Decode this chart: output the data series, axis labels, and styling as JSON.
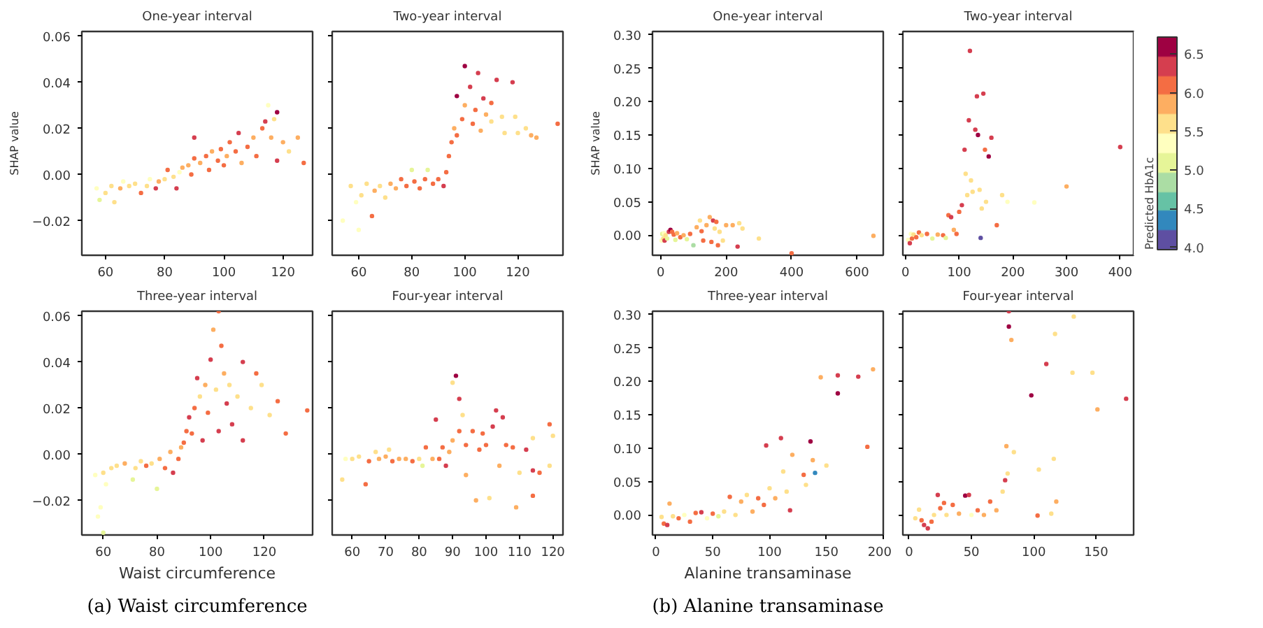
{
  "chart_data": [
    {
      "type": "scatter",
      "title": "One-year interval",
      "ylabel": "SHAP value",
      "marker": "circle",
      "xlim": [
        52,
        130
      ],
      "xticks": [
        60,
        80,
        100,
        120
      ],
      "ylim": [
        -0.035,
        0.062
      ],
      "yticks": [
        {
          "value": -0.02,
          "label": "−0.02"
        },
        {
          "value": 0,
          "label": "0.00"
        },
        {
          "value": 0.02,
          "label": "0.02"
        },
        {
          "value": 0.04,
          "label": "0.04"
        },
        {
          "value": 0.06,
          "label": "0.06"
        }
      ],
      "x": [
        57,
        58,
        60,
        62,
        63,
        65,
        66,
        68,
        70,
        72,
        74,
        75,
        77,
        78,
        80,
        81,
        83,
        84,
        85,
        86,
        88,
        89,
        90,
        90,
        92,
        94,
        95,
        96,
        98,
        99,
        100,
        101,
        102,
        104,
        105,
        106,
        108,
        110,
        111,
        113,
        114,
        115,
        116,
        117,
        118,
        118,
        120,
        122,
        125,
        127
      ],
      "values": [
        -0.006,
        -0.011,
        -0.008,
        -0.005,
        -0.012,
        -0.006,
        -0.003,
        -0.005,
        -0.004,
        -0.008,
        -0.005,
        -0.002,
        -0.006,
        -0.003,
        -0.002,
        0.002,
        -0.001,
        -0.006,
        0.001,
        0.003,
        0.004,
        0.0,
        0.007,
        0.016,
        0.005,
        0.008,
        0.002,
        0.01,
        0.006,
        0.011,
        0.004,
        0.008,
        0.014,
        0.01,
        0.018,
        0.005,
        0.012,
        0.016,
        0.008,
        0.02,
        0.023,
        0.03,
        0.016,
        0.024,
        0.027,
        0.006,
        0.014,
        0.01,
        0.016,
        0.005
      ],
      "colors": [
        "#ffffbf",
        "#e6f598",
        "#fee08b",
        "#fee08b",
        "#fee08b",
        "#fdae61",
        "#ffffbf",
        "#fee08b",
        "#fee08b",
        "#f46d43",
        "#fee08b",
        "#ffffbf",
        "#d53e4f",
        "#fdae61",
        "#fee08b",
        "#f46d43",
        "#fee08b",
        "#d53e4f",
        "#ffffbf",
        "#fdae61",
        "#fdae61",
        "#f46d43",
        "#f46d43",
        "#d53e4f",
        "#fdae61",
        "#f46d43",
        "#f46d43",
        "#fdae61",
        "#f46d43",
        "#f46d43",
        "#f46d43",
        "#fdae61",
        "#f46d43",
        "#f46d43",
        "#d53e4f",
        "#fdae61",
        "#f46d43",
        "#fdae61",
        "#f46d43",
        "#f46d43",
        "#d53e4f",
        "#ffffbf",
        "#fdae61",
        "#fee08b",
        "#9e0142",
        "#d53e4f",
        "#fdae61",
        "#fee08b",
        "#fdae61",
        "#f46d43"
      ]
    },
    {
      "type": "scatter",
      "title": "Two-year interval",
      "marker": "circle",
      "tick_labels": "x",
      "xlim": [
        50,
        137
      ],
      "xticks": [
        60,
        80,
        100,
        120
      ],
      "ylim": [
        -0.035,
        0.062
      ],
      "yticks": [
        -0.02,
        0,
        0.02,
        0.04,
        0.06
      ],
      "x": [
        54,
        57,
        59,
        60,
        61,
        63,
        65,
        66,
        68,
        70,
        72,
        74,
        76,
        78,
        80,
        81,
        83,
        85,
        86,
        88,
        90,
        92,
        93,
        94,
        95,
        96,
        97,
        97,
        99,
        100,
        100,
        102,
        103,
        104,
        105,
        106,
        107,
        108,
        110,
        110,
        112,
        114,
        115,
        118,
        119,
        120,
        123,
        125,
        127,
        135
      ],
      "values": [
        -0.02,
        -0.005,
        -0.012,
        -0.024,
        -0.009,
        -0.004,
        -0.018,
        -0.007,
        -0.005,
        -0.01,
        -0.004,
        -0.006,
        -0.002,
        -0.005,
        0.002,
        -0.003,
        -0.006,
        -0.002,
        0.002,
        -0.004,
        -0.002,
        -0.005,
        0.001,
        0.008,
        0.014,
        0.02,
        0.017,
        0.034,
        0.024,
        0.03,
        0.047,
        0.038,
        0.022,
        0.028,
        0.044,
        0.019,
        0.033,
        0.026,
        0.023,
        0.031,
        0.041,
        0.025,
        0.018,
        0.04,
        0.025,
        0.018,
        0.02,
        0.017,
        0.016,
        0.022
      ],
      "colors": [
        "#ffffbf",
        "#fee08b",
        "#ffffbf",
        "#ffffbf",
        "#fee08b",
        "#fee08b",
        "#f46d43",
        "#fdae61",
        "#fee08b",
        "#fee08b",
        "#fdae61",
        "#fdae61",
        "#f46d43",
        "#f46d43",
        "#e6f598",
        "#f46d43",
        "#f46d43",
        "#f46d43",
        "#e6f598",
        "#f46d43",
        "#f46d43",
        "#d53e4f",
        "#f46d43",
        "#f46d43",
        "#f46d43",
        "#fdae61",
        "#f46d43",
        "#9e0142",
        "#f46d43",
        "#fdae61",
        "#9e0142",
        "#d53e4f",
        "#f46d43",
        "#f46d43",
        "#d53e4f",
        "#fdae61",
        "#d53e4f",
        "#fdae61",
        "#fee08b",
        "#f46d43",
        "#d53e4f",
        "#fee08b",
        "#fee08b",
        "#d53e4f",
        "#fee08b",
        "#fee08b",
        "#fee08b",
        "#fdae61",
        "#fdae61",
        "#f46d43"
      ]
    },
    {
      "type": "scatter",
      "title": "Three-year interval",
      "xlabel": "Waist circumference",
      "annotations": [
        "(a) Waist circumference"
      ],
      "marker": "circle",
      "xlim": [
        52,
        138
      ],
      "xticks": [
        60,
        80,
        100,
        120
      ],
      "ylim": [
        -0.035,
        0.062
      ],
      "yticks": [
        {
          "value": -0.02,
          "label": "−0.02"
        },
        {
          "value": 0,
          "label": "0.00"
        },
        {
          "value": 0.02,
          "label": "0.02"
        },
        {
          "value": 0.04,
          "label": "0.04"
        },
        {
          "value": 0.06,
          "label": "0.06"
        }
      ],
      "x": [
        57,
        58,
        59,
        60,
        60,
        61,
        63,
        65,
        68,
        71,
        72,
        74,
        76,
        78,
        80,
        81,
        83,
        85,
        86,
        88,
        89,
        90,
        91,
        92,
        93,
        94,
        95,
        96,
        97,
        98,
        99,
        100,
        101,
        102,
        103,
        103,
        104,
        105,
        106,
        107,
        108,
        110,
        112,
        112,
        115,
        117,
        119,
        122,
        125,
        128,
        136
      ],
      "values": [
        -0.009,
        -0.027,
        -0.023,
        -0.034,
        -0.008,
        -0.013,
        -0.006,
        -0.005,
        -0.004,
        -0.011,
        -0.006,
        -0.003,
        -0.005,
        -0.004,
        -0.015,
        -0.002,
        -0.006,
        0.001,
        -0.008,
        -0.002,
        0.003,
        0.005,
        0.01,
        0.016,
        0.009,
        0.02,
        0.033,
        0.025,
        0.006,
        0.03,
        0.018,
        0.041,
        0.054,
        0.028,
        0.062,
        0.01,
        0.047,
        0.035,
        0.022,
        0.03,
        0.013,
        0.025,
        0.04,
        0.006,
        0.02,
        0.035,
        0.03,
        0.017,
        0.023,
        0.009,
        0.019
      ],
      "colors": [
        "#ffffbf",
        "#ffffbf",
        "#ffffbf",
        "#e6f598",
        "#fee08b",
        "#ffffbf",
        "#fee08b",
        "#fee08b",
        "#fdae61",
        "#e6f598",
        "#fee08b",
        "#fee08b",
        "#f46d43",
        "#fee08b",
        "#e6f598",
        "#fdae61",
        "#f46d43",
        "#fdae61",
        "#d53e4f",
        "#f46d43",
        "#fdae61",
        "#f46d43",
        "#f46d43",
        "#d53e4f",
        "#f46d43",
        "#f46d43",
        "#d53e4f",
        "#fee08b",
        "#d53e4f",
        "#fdae61",
        "#f46d43",
        "#d53e4f",
        "#fdae61",
        "#fee08b",
        "#f46d43",
        "#d53e4f",
        "#f46d43",
        "#fdae61",
        "#d53e4f",
        "#fee08b",
        "#d53e4f",
        "#fee08b",
        "#d53e4f",
        "#d53e4f",
        "#fee08b",
        "#f46d43",
        "#fee08b",
        "#fee08b",
        "#f46d43",
        "#f46d43",
        "#f46d43"
      ]
    },
    {
      "type": "scatter",
      "title": "Four-year interval",
      "marker": "circle",
      "tick_labels": "x",
      "xlim": [
        54,
        123
      ],
      "xticks": [
        60,
        70,
        80,
        90,
        100,
        110,
        120
      ],
      "ylim": [
        -0.035,
        0.062
      ],
      "yticks": [
        -0.02,
        0,
        0.02,
        0.04,
        0.06
      ],
      "x": [
        57,
        58,
        60,
        62,
        64,
        65,
        67,
        68,
        70,
        71,
        72,
        74,
        76,
        78,
        80,
        81,
        82,
        84,
        85,
        86,
        87,
        88,
        89,
        90,
        90,
        91,
        92,
        92,
        93,
        94,
        94,
        96,
        97,
        98,
        99,
        100,
        101,
        102,
        103,
        104,
        105,
        106,
        108,
        109,
        110,
        112,
        114,
        114,
        114,
        116,
        119,
        119,
        120
      ],
      "values": [
        -0.011,
        -0.002,
        -0.002,
        -0.001,
        -0.013,
        -0.003,
        0.001,
        -0.002,
        -0.001,
        0.002,
        -0.003,
        -0.002,
        -0.002,
        -0.003,
        -0.002,
        -0.005,
        0.003,
        -0.002,
        0.015,
        -0.002,
        0.003,
        -0.005,
        0.001,
        0.031,
        0.006,
        0.034,
        0.024,
        0.01,
        0.017,
        0.004,
        -0.009,
        0.01,
        -0.02,
        0.002,
        0.009,
        0.004,
        -0.019,
        0.012,
        0.019,
        -0.005,
        0.016,
        0.004,
        0.003,
        -0.023,
        -0.008,
        0.002,
        0.007,
        -0.007,
        -0.018,
        -0.008,
        0.013,
        -0.005,
        0.008
      ],
      "colors": [
        "#fee08b",
        "#ffffbf",
        "#fee08b",
        "#fee08b",
        "#f46d43",
        "#f46d43",
        "#fee08b",
        "#fdae61",
        "#fdae61",
        "#fee08b",
        "#f46d43",
        "#fdae61",
        "#fdae61",
        "#f46d43",
        "#fee08b",
        "#e6f598",
        "#f46d43",
        "#fdae61",
        "#d53e4f",
        "#f46d43",
        "#f46d43",
        "#d53e4f",
        "#fdae61",
        "#fee08b",
        "#fdae61",
        "#9e0142",
        "#d53e4f",
        "#f46d43",
        "#fee08b",
        "#f46d43",
        "#fdae61",
        "#f46d43",
        "#fdae61",
        "#f46d43",
        "#f46d43",
        "#f46d43",
        "#fee08b",
        "#d53e4f",
        "#d53e4f",
        "#fdae61",
        "#d53e4f",
        "#f46d43",
        "#f46d43",
        "#fdae61",
        "#fee08b",
        "#d53e4f",
        "#fee08b",
        "#d53e4f",
        "#f46d43",
        "#f46d43",
        "#f46d43",
        "#fee08b",
        "#fee08b"
      ]
    },
    {
      "type": "scatter",
      "title": "One-year interval",
      "ylabel": "SHAP value",
      "marker": "circle",
      "xlim": [
        -25,
        680
      ],
      "xticks": [
        0,
        200,
        400,
        600
      ],
      "ylim": [
        -0.03,
        0.305
      ],
      "yticks": [
        {
          "value": 0,
          "label": "0.00"
        },
        {
          "value": 0.05,
          "label": "0.05"
        },
        {
          "value": 0.1,
          "label": "0.10"
        },
        {
          "value": 0.15,
          "label": "0.15"
        },
        {
          "value": 0.2,
          "label": "0.20"
        },
        {
          "value": 0.25,
          "label": "0.25"
        },
        {
          "value": 0.3,
          "label": "0.30"
        }
      ],
      "x": [
        3,
        5,
        8,
        10,
        12,
        15,
        20,
        25,
        30,
        35,
        40,
        45,
        50,
        60,
        70,
        80,
        90,
        100,
        110,
        120,
        125,
        130,
        140,
        150,
        155,
        160,
        165,
        170,
        175,
        180,
        190,
        200,
        220,
        235,
        240,
        250,
        300,
        400,
        650
      ],
      "values": [
        -0.008,
        0.002,
        -0.005,
        0.003,
        -0.008,
        0.0,
        -0.005,
        0.005,
        0.008,
        0.005,
        0.001,
        -0.007,
        0.003,
        -0.003,
        0.0,
        -0.006,
        0.002,
        -0.015,
        0.012,
        0.022,
        0.006,
        -0.008,
        0.015,
        0.027,
        -0.01,
        0.022,
        0.01,
        0.02,
        -0.015,
        0.005,
        -0.008,
        0.015,
        0.015,
        -0.017,
        0.018,
        0.01,
        -0.005,
        -0.027,
        -0.001
      ],
      "colors": [
        "#ffffbf",
        "#e6f598",
        "#fee08b",
        "#ffffbf",
        "#d53e4f",
        "#fee08b",
        "#e6f598",
        "#d53e4f",
        "#9e0142",
        "#f46d43",
        "#f46d43",
        "#e6f598",
        "#fdae61",
        "#f46d43",
        "#fdae61",
        "#e6f598",
        "#f46d43",
        "#abdda4",
        "#fdae61",
        "#fee08b",
        "#f46d43",
        "#f46d43",
        "#fdae61",
        "#fdae61",
        "#f46d43",
        "#d53e4f",
        "#fee08b",
        "#f46d43",
        "#f46d43",
        "#fee08b",
        "#fee08b",
        "#fdae61",
        "#fdae61",
        "#d53e4f",
        "#fee08b",
        "#fee08b",
        "#fee08b",
        "#f46d43",
        "#fdae61"
      ]
    },
    {
      "type": "scatter",
      "title": "Two-year interval",
      "clabel": "Predicted HbA1c",
      "marker": "circle",
      "clim": [
        3.97,
        6.72
      ],
      "cticks": [
        {
          "value": 4.0,
          "label": "4.0"
        },
        {
          "value": 4.5,
          "label": "4.5"
        },
        {
          "value": 5.0,
          "label": "5.0"
        },
        {
          "value": 5.5,
          "label": "5.5"
        },
        {
          "value": 6.0,
          "label": "6.0"
        },
        {
          "value": 6.5,
          "label": "6.5"
        }
      ],
      "tick_labels": "x",
      "xlim": [
        -5,
        425
      ],
      "xticks": [
        0,
        100,
        200,
        300,
        400
      ],
      "ylim": [
        -0.03,
        0.305
      ],
      "yticks": [
        0,
        0.05,
        0.1,
        0.15,
        0.2,
        0.25,
        0.3
      ],
      "x": [
        5,
        8,
        10,
        12,
        15,
        20,
        25,
        30,
        40,
        50,
        60,
        70,
        75,
        80,
        85,
        90,
        95,
        100,
        105,
        110,
        112,
        115,
        118,
        120,
        122,
        125,
        130,
        133,
        135,
        138,
        140,
        142,
        145,
        148,
        150,
        155,
        160,
        170,
        180,
        190,
        240,
        300,
        400
      ],
      "values": [
        -0.007,
        -0.012,
        0.002,
        -0.005,
        0.001,
        -0.003,
        0.004,
        0.0,
        0.002,
        -0.005,
        0.001,
        0.0,
        -0.004,
        0.03,
        0.027,
        0.008,
        0.002,
        0.035,
        0.045,
        0.128,
        0.092,
        0.06,
        0.172,
        0.276,
        0.082,
        0.065,
        0.158,
        0.208,
        0.15,
        0.068,
        -0.004,
        0.04,
        0.212,
        0.128,
        0.05,
        0.118,
        0.146,
        0.015,
        0.06,
        0.05,
        0.049,
        0.073,
        0.132
      ],
      "cvalues": [
        5.4,
        6.3,
        5.4,
        6.2,
        5.6,
        6.0,
        6.1,
        5.7,
        6.0,
        5.0,
        5.8,
        6.0,
        5.1,
        6.2,
        6.3,
        5.9,
        6.1,
        6.2,
        6.3,
        6.4,
        5.6,
        5.7,
        6.4,
        6.4,
        5.6,
        5.6,
        6.4,
        6.4,
        6.5,
        5.6,
        4.2,
        5.5,
        6.3,
        6.1,
        5.5,
        6.5,
        6.3,
        6.2,
        5.5,
        5.4,
        5.4,
        5.9,
        6.4
      ]
    },
    {
      "type": "scatter",
      "title": "Three-year interval",
      "xlabel": "Alanine transaminase",
      "annotations": [
        "(b) Alanine transaminase"
      ],
      "marker": "circle",
      "xlim": [
        -3,
        200
      ],
      "xticks": [
        0,
        50,
        100,
        150,
        200
      ],
      "ylim": [
        -0.03,
        0.305
      ],
      "yticks": [
        {
          "value": 0,
          "label": "0.00"
        },
        {
          "value": 0.05,
          "label": "0.05"
        },
        {
          "value": 0.1,
          "label": "0.10"
        },
        {
          "value": 0.15,
          "label": "0.15"
        },
        {
          "value": 0.2,
          "label": "0.20"
        },
        {
          "value": 0.25,
          "label": "0.25"
        },
        {
          "value": 0.3,
          "label": "0.30"
        }
      ],
      "x": [
        5,
        7,
        10,
        12,
        15,
        20,
        25,
        30,
        35,
        40,
        45,
        50,
        55,
        60,
        65,
        70,
        75,
        80,
        85,
        90,
        95,
        97,
        100,
        105,
        110,
        112,
        115,
        118,
        120,
        130,
        132,
        136,
        138,
        140,
        145,
        150,
        160,
        160,
        178,
        186,
        191
      ],
      "values": [
        -0.003,
        -0.013,
        -0.015,
        0.017,
        -0.002,
        -0.005,
        0.0,
        -0.01,
        0.003,
        0.004,
        -0.005,
        0.002,
        -0.002,
        0.005,
        0.027,
        0.0,
        0.02,
        0.03,
        0.005,
        0.025,
        0.015,
        0.104,
        0.04,
        0.025,
        0.115,
        0.065,
        0.035,
        0.007,
        0.09,
        0.06,
        0.045,
        0.11,
        0.082,
        0.063,
        0.206,
        0.074,
        0.209,
        0.182,
        0.207,
        0.102,
        0.218
      ],
      "colors": [
        "#fee08b",
        "#f46d43",
        "#d53e4f",
        "#fdae61",
        "#fee08b",
        "#f46d43",
        "#ffffbf",
        "#f46d43",
        "#f46d43",
        "#d53e4f",
        "#ffffbf",
        "#f46d43",
        "#e6f598",
        "#fee08b",
        "#f46d43",
        "#fee08b",
        "#fdae61",
        "#fee08b",
        "#fdae61",
        "#f46d43",
        "#f46d43",
        "#d53e4f",
        "#fee08b",
        "#fdae61",
        "#d53e4f",
        "#fee08b",
        "#fee08b",
        "#d53e4f",
        "#fdae61",
        "#f46d43",
        "#fee08b",
        "#9e0142",
        "#fdae61",
        "#3288bd",
        "#fdae61",
        "#fee08b",
        "#d53e4f",
        "#9e0142",
        "#d53e4f",
        "#f46d43",
        "#fdae61"
      ]
    },
    {
      "type": "scatter",
      "title": "Four-year interval",
      "marker": "circle",
      "tick_labels": "x",
      "xlim": [
        -5,
        180
      ],
      "xticks": [
        0,
        50,
        100,
        150
      ],
      "ylim": [
        -0.03,
        0.305
      ],
      "yticks": [
        0,
        0.05,
        0.1,
        0.15,
        0.2,
        0.25,
        0.3
      ],
      "x": [
        5,
        8,
        10,
        12,
        15,
        18,
        20,
        23,
        25,
        28,
        30,
        35,
        40,
        45,
        48,
        50,
        55,
        60,
        65,
        70,
        75,
        77,
        78,
        79,
        80,
        80,
        82,
        84,
        98,
        103,
        104,
        110,
        114,
        116,
        117,
        118,
        131,
        132,
        147,
        151,
        174
      ],
      "values": [
        -0.005,
        0.008,
        -0.008,
        -0.015,
        -0.02,
        -0.01,
        0.0,
        0.03,
        0.01,
        0.018,
        0.0,
        0.015,
        0.002,
        0.029,
        0.03,
        0.0,
        0.007,
        0.0,
        0.02,
        0.007,
        0.035,
        0.052,
        0.103,
        0.062,
        0.305,
        0.282,
        0.262,
        0.094,
        0.179,
        -0.001,
        0.068,
        0.226,
        0.002,
        0.084,
        0.271,
        0.02,
        0.213,
        0.297,
        0.213,
        0.158,
        0.174
      ],
      "colors": [
        "#fee08b",
        "#fee08b",
        "#f46d43",
        "#d53e4f",
        "#d53e4f",
        "#f46d43",
        "#fee08b",
        "#d53e4f",
        "#f46d43",
        "#f46d43",
        "#fee08b",
        "#f46d43",
        "#fdae61",
        "#9e0142",
        "#d53e4f",
        "#ffffbf",
        "#f46d43",
        "#fdae61",
        "#f46d43",
        "#fdae61",
        "#fee08b",
        "#d53e4f",
        "#fdae61",
        "#fee08b",
        "#d53e4f",
        "#9e0142",
        "#fdae61",
        "#fee08b",
        "#9e0142",
        "#f46d43",
        "#fee08b",
        "#d53e4f",
        "#fee08b",
        "#fee08b",
        "#fee08b",
        "#fdae61",
        "#fee08b",
        "#fee08b",
        "#fee08b",
        "#fdae61",
        "#d53e4f"
      ]
    }
  ]
}
